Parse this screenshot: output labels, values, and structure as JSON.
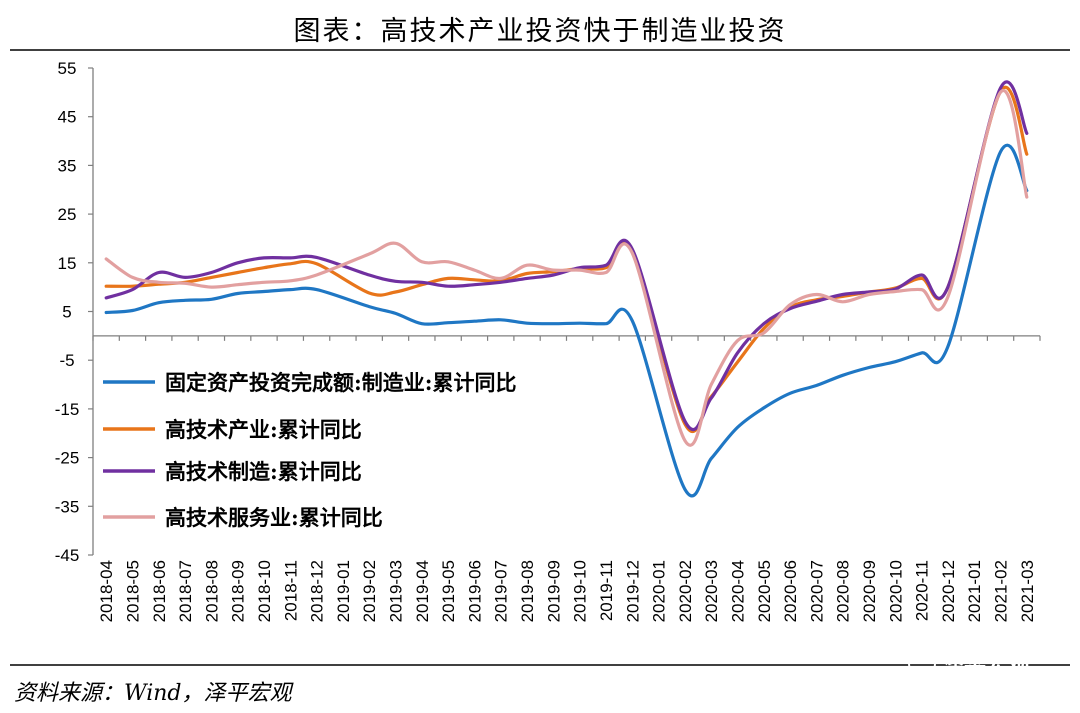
{
  "chart_data": {
    "type": "line",
    "title": "图表：高技术产业投资快于制造业投资",
    "xlabel": "",
    "ylabel": "",
    "ylim": [
      -45,
      55
    ],
    "yticks": [
      55,
      45,
      35,
      25,
      15,
      5,
      -5,
      -15,
      -25,
      -35,
      -45
    ],
    "categories": [
      "2018-04",
      "2018-05",
      "2018-06",
      "2018-07",
      "2018-08",
      "2018-09",
      "2018-10",
      "2018-11",
      "2018-12",
      "2019-01",
      "2019-02",
      "2019-03",
      "2019-04",
      "2019-05",
      "2019-06",
      "2019-07",
      "2019-08",
      "2019-09",
      "2019-10",
      "2019-11",
      "2019-12",
      "2020-01",
      "2020-02",
      "2020-03",
      "2020-04",
      "2020-05",
      "2020-06",
      "2020-07",
      "2020-08",
      "2020-09",
      "2020-10",
      "2020-11",
      "2020-12",
      "2021-01",
      "2021-02",
      "2021-03"
    ],
    "series": [
      {
        "name": "固定资产投资完成额:制造业:累计同比",
        "color": "#1f77c4",
        "values": [
          4.8,
          5.2,
          6.8,
          7.3,
          7.5,
          8.7,
          9.1,
          9.5,
          9.5,
          null,
          6.0,
          4.6,
          2.5,
          2.7,
          3.0,
          3.3,
          2.6,
          2.5,
          2.6,
          2.5,
          3.1,
          null,
          -31.5,
          -25.2,
          -18.8,
          -14.8,
          -11.8,
          -10.2,
          -8.1,
          -6.5,
          -5.3,
          -3.5,
          -2.2,
          null,
          37.8,
          29.8
        ]
      },
      {
        "name": "高技术产业:累计同比",
        "color": "#e8751a",
        "values": [
          10.2,
          10.2,
          10.6,
          11.0,
          12.0,
          13.0,
          14.0,
          14.8,
          14.8,
          null,
          8.8,
          9.0,
          10.5,
          11.8,
          11.5,
          11.3,
          12.8,
          13.2,
          13.8,
          14.0,
          17.3,
          null,
          -18.1,
          -12.5,
          -5.4,
          1.5,
          5.9,
          7.4,
          8.1,
          9.0,
          9.8,
          11.8,
          10.0,
          null,
          50.2,
          37.3
        ]
      },
      {
        "name": "高技术制造:累计同比",
        "color": "#7030a0",
        "values": [
          7.8,
          9.5,
          13.0,
          12.0,
          13.0,
          15.0,
          16.0,
          16.0,
          16.1,
          null,
          12.5,
          11.2,
          11.0,
          10.2,
          10.5,
          11.0,
          11.8,
          12.5,
          14.0,
          14.5,
          17.8,
          null,
          -17.5,
          -12.8,
          -3.5,
          2.5,
          5.6,
          7.1,
          8.5,
          9.0,
          9.6,
          12.5,
          10.0,
          null,
          50.9,
          41.6
        ]
      },
      {
        "name": "高技术服务业:累计同比",
        "color": "#e2a0a0",
        "values": [
          15.8,
          12.0,
          11.0,
          10.8,
          10.0,
          10.5,
          11.0,
          11.3,
          12.5,
          null,
          16.8,
          19.0,
          15.2,
          15.2,
          13.5,
          11.8,
          14.5,
          13.5,
          13.5,
          13.0,
          17.0,
          null,
          -21.5,
          -10.0,
          -1.0,
          0.6,
          6.4,
          8.5,
          7.0,
          8.5,
          9.1,
          9.5,
          8.0,
          null,
          50.0,
          28.5
        ]
      }
    ],
    "legend_position": "lower-left",
    "grid": false,
    "source": "资料来源：Wind，泽平宏观",
    "watermark": "泽平宏观"
  }
}
